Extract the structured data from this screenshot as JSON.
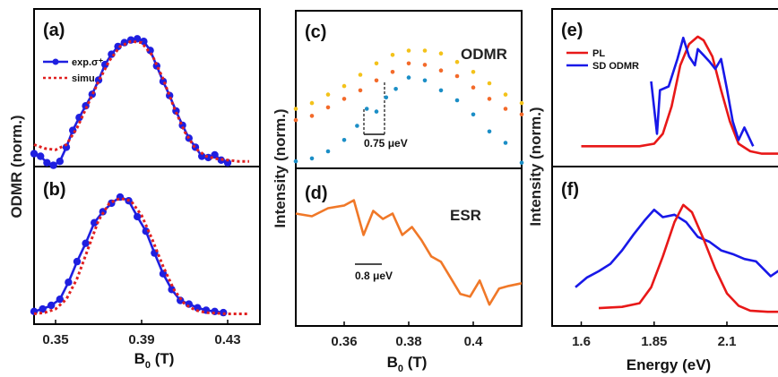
{
  "figure": {
    "left_ylabel": "ODMR (norm.)",
    "mid_ylabel": "Intensity (norm.)",
    "right_ylabel": "Intensity (norm.)"
  },
  "chart_data": [
    {
      "id": "a",
      "panel_label": "(a)",
      "type": "line",
      "xlim": [
        0.34,
        0.445
      ],
      "ylim": [
        0,
        1.05
      ],
      "legend": {
        "placement": "top-left",
        "entries": [
          "exp.σ⁺",
          "simu."
        ]
      },
      "series": [
        {
          "name": "exp.σ⁺",
          "color": "#1f1fe0",
          "style": "line-markers",
          "x": [
            0.34,
            0.343,
            0.346,
            0.349,
            0.352,
            0.355,
            0.358,
            0.361,
            0.364,
            0.367,
            0.37,
            0.373,
            0.376,
            0.379,
            0.382,
            0.385,
            0.388,
            0.391,
            0.394,
            0.397,
            0.4,
            0.403,
            0.406,
            0.409,
            0.412,
            0.415,
            0.418,
            0.421,
            0.424,
            0.427,
            0.43
          ],
          "y": [
            0.1,
            0.08,
            0.03,
            0.01,
            0.04,
            0.15,
            0.28,
            0.38,
            0.47,
            0.56,
            0.67,
            0.79,
            0.87,
            0.93,
            0.96,
            0.98,
            0.99,
            0.97,
            0.9,
            0.78,
            0.66,
            0.55,
            0.43,
            0.32,
            0.22,
            0.15,
            0.08,
            0.07,
            0.09,
            0.05,
            0.03
          ]
        },
        {
          "name": "simu.",
          "color": "#e02020",
          "style": "dotted",
          "x": [
            0.34,
            0.345,
            0.35,
            0.355,
            0.36,
            0.365,
            0.37,
            0.375,
            0.38,
            0.385,
            0.39,
            0.395,
            0.4,
            0.405,
            0.41,
            0.415,
            0.42,
            0.425,
            0.43,
            0.435,
            0.44
          ],
          "y": [
            0.17,
            0.14,
            0.13,
            0.17,
            0.3,
            0.48,
            0.66,
            0.82,
            0.93,
            0.97,
            0.96,
            0.86,
            0.68,
            0.46,
            0.27,
            0.14,
            0.08,
            0.06,
            0.05,
            0.04,
            0.04
          ]
        }
      ]
    },
    {
      "id": "b",
      "panel_label": "(b)",
      "type": "line",
      "xlim": [
        0.34,
        0.445
      ],
      "ylim": [
        0,
        1.05
      ],
      "x_ticks": [
        "0.35",
        "0.39",
        "0.43"
      ],
      "x_tick_values": [
        0.35,
        0.39,
        0.43
      ],
      "xlabel": "B",
      "xlabel_sub": "0",
      "xlabel_unit": " (T)",
      "series": [
        {
          "name": "exp.σ⁺",
          "color": "#1f1fe0",
          "style": "line-markers",
          "x": [
            0.34,
            0.344,
            0.348,
            0.352,
            0.356,
            0.36,
            0.364,
            0.368,
            0.372,
            0.376,
            0.38,
            0.384,
            0.388,
            0.392,
            0.396,
            0.4,
            0.404,
            0.408,
            0.412,
            0.416,
            0.42,
            0.424,
            0.428
          ],
          "y": [
            0.04,
            0.06,
            0.09,
            0.14,
            0.28,
            0.45,
            0.6,
            0.77,
            0.86,
            0.93,
            0.98,
            0.95,
            0.82,
            0.7,
            0.52,
            0.35,
            0.22,
            0.13,
            0.1,
            0.07,
            0.05,
            0.04,
            0.03
          ]
        },
        {
          "name": "simu.",
          "color": "#e02020",
          "style": "dotted",
          "x": [
            0.34,
            0.345,
            0.35,
            0.355,
            0.36,
            0.365,
            0.37,
            0.375,
            0.38,
            0.385,
            0.39,
            0.395,
            0.4,
            0.405,
            0.41,
            0.415,
            0.42,
            0.43,
            0.44
          ],
          "y": [
            0.02,
            0.03,
            0.06,
            0.14,
            0.31,
            0.55,
            0.79,
            0.93,
            0.97,
            0.95,
            0.83,
            0.63,
            0.41,
            0.22,
            0.1,
            0.05,
            0.03,
            0.02,
            0.02
          ]
        }
      ]
    },
    {
      "id": "c",
      "panel_label": "(c)",
      "type": "scatter",
      "title": "ODMR",
      "xlim": [
        0.345,
        0.415
      ],
      "ylim": [
        0,
        1
      ],
      "annotation": "0.75 μeV",
      "series": [
        {
          "color": "#f3c21a",
          "x": [
            0.345,
            0.35,
            0.355,
            0.36,
            0.365,
            0.37,
            0.375,
            0.38,
            0.385,
            0.39,
            0.395,
            0.4,
            0.405,
            0.41,
            0.415
          ],
          "y": [
            0.42,
            0.46,
            0.52,
            0.58,
            0.66,
            0.74,
            0.8,
            0.83,
            0.83,
            0.81,
            0.75,
            0.68,
            0.6,
            0.52,
            0.46
          ]
        },
        {
          "color": "#f36a2a",
          "x": [
            0.345,
            0.35,
            0.355,
            0.36,
            0.365,
            0.37,
            0.375,
            0.38,
            0.385,
            0.39,
            0.395,
            0.4,
            0.405,
            0.41,
            0.415
          ],
          "y": [
            0.34,
            0.37,
            0.43,
            0.49,
            0.55,
            0.62,
            0.68,
            0.74,
            0.73,
            0.69,
            0.65,
            0.57,
            0.49,
            0.42,
            0.38
          ]
        },
        {
          "color": "#1b8ec6",
          "x": [
            0.345,
            0.35,
            0.355,
            0.36,
            0.364,
            0.367,
            0.37,
            0.373,
            0.376,
            0.38,
            0.385,
            0.39,
            0.395,
            0.4,
            0.405,
            0.41,
            0.415
          ],
          "y": [
            0.05,
            0.07,
            0.12,
            0.2,
            0.3,
            0.42,
            0.4,
            0.5,
            0.56,
            0.64,
            0.62,
            0.55,
            0.48,
            0.38,
            0.26,
            0.18,
            0.04
          ]
        }
      ]
    },
    {
      "id": "d",
      "panel_label": "(d)",
      "type": "line",
      "title": "ESR",
      "xlim": [
        0.345,
        0.415
      ],
      "ylim": [
        0,
        1
      ],
      "x_ticks": [
        "0.36",
        "0.38",
        "0.4"
      ],
      "x_tick_values": [
        0.36,
        0.38,
        0.4
      ],
      "xlabel": "B",
      "xlabel_sub": "0",
      "xlabel_unit": " (T)",
      "annotation": "0.8 μeV",
      "series": [
        {
          "color": "#f07828",
          "x": [
            0.345,
            0.35,
            0.355,
            0.36,
            0.363,
            0.366,
            0.369,
            0.372,
            0.375,
            0.378,
            0.381,
            0.384,
            0.387,
            0.39,
            0.393,
            0.396,
            0.399,
            0.402,
            0.405,
            0.408,
            0.411,
            0.415
          ],
          "y": [
            0.78,
            0.76,
            0.82,
            0.84,
            0.88,
            0.62,
            0.8,
            0.74,
            0.78,
            0.62,
            0.68,
            0.58,
            0.46,
            0.42,
            0.3,
            0.18,
            0.16,
            0.28,
            0.1,
            0.22,
            0.24,
            0.26
          ]
        }
      ]
    },
    {
      "id": "e",
      "panel_label": "(e)",
      "type": "line",
      "xlim": [
        1.5,
        2.3
      ],
      "ylim": [
        0,
        1.05
      ],
      "legend": {
        "placement": "top-left",
        "entries": [
          "PL",
          "SD ODMR"
        ]
      },
      "series": [
        {
          "name": "PL",
          "color": "#e81818",
          "x": [
            1.6,
            1.7,
            1.8,
            1.85,
            1.88,
            1.91,
            1.94,
            1.97,
            2.0,
            2.02,
            2.05,
            2.08,
            2.11,
            2.14,
            2.18,
            2.22,
            2.28
          ],
          "y": [
            0.1,
            0.1,
            0.1,
            0.12,
            0.2,
            0.42,
            0.75,
            0.92,
            0.98,
            0.95,
            0.82,
            0.55,
            0.3,
            0.12,
            0.06,
            0.04,
            0.04
          ]
        },
        {
          "name": "SD ODMR",
          "color": "#1818e8",
          "x": [
            1.84,
            1.86,
            1.87,
            1.9,
            1.93,
            1.95,
            1.97,
            1.99,
            2.0,
            2.02,
            2.04,
            2.06,
            2.08,
            2.1,
            2.12,
            2.14,
            2.16,
            2.19
          ],
          "y": [
            0.62,
            0.2,
            0.55,
            0.58,
            0.8,
            0.97,
            0.82,
            0.75,
            0.88,
            0.83,
            0.78,
            0.72,
            0.8,
            0.56,
            0.3,
            0.15,
            0.25,
            0.1
          ]
        }
      ]
    },
    {
      "id": "f",
      "panel_label": "(f)",
      "type": "line",
      "xlim": [
        1.5,
        2.3
      ],
      "ylim": [
        0,
        1.05
      ],
      "x_ticks": [
        "1.6",
        "1.85",
        "2.1"
      ],
      "x_tick_values": [
        1.6,
        1.85,
        2.1
      ],
      "xlabel": "Energy (eV)",
      "series": [
        {
          "name": "SD ODMR",
          "color": "#1818e8",
          "x": [
            1.58,
            1.62,
            1.66,
            1.7,
            1.74,
            1.78,
            1.82,
            1.85,
            1.88,
            1.92,
            1.96,
            2.0,
            2.04,
            2.08,
            2.12,
            2.16,
            2.2,
            2.25,
            2.3
          ],
          "y": [
            0.25,
            0.33,
            0.38,
            0.44,
            0.55,
            0.68,
            0.8,
            0.88,
            0.82,
            0.84,
            0.78,
            0.66,
            0.62,
            0.55,
            0.52,
            0.48,
            0.46,
            0.34,
            0.42
          ]
        },
        {
          "name": "PL",
          "color": "#e81818",
          "x": [
            1.66,
            1.74,
            1.8,
            1.84,
            1.88,
            1.92,
            1.95,
            1.98,
            2.02,
            2.06,
            2.1,
            2.14,
            2.18,
            2.24,
            2.3
          ],
          "y": [
            0.08,
            0.09,
            0.12,
            0.25,
            0.5,
            0.78,
            0.92,
            0.86,
            0.64,
            0.4,
            0.2,
            0.1,
            0.06,
            0.05,
            0.05
          ]
        }
      ]
    }
  ]
}
